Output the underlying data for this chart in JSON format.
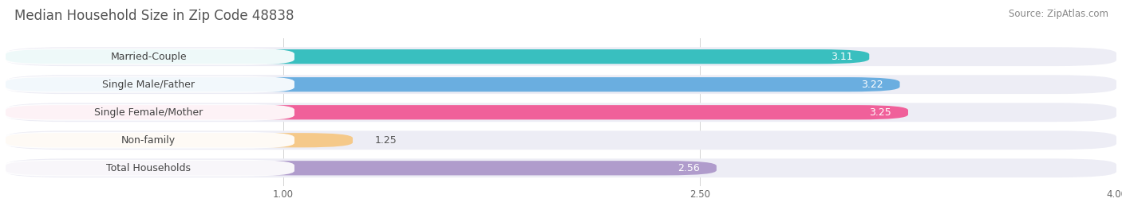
{
  "title": "Median Household Size in Zip Code 48838",
  "source": "Source: ZipAtlas.com",
  "categories": [
    "Married-Couple",
    "Single Male/Father",
    "Single Female/Mother",
    "Non-family",
    "Total Households"
  ],
  "values": [
    3.11,
    3.22,
    3.25,
    1.25,
    2.56
  ],
  "bar_colors": [
    "#39bfbf",
    "#6aaee0",
    "#f0609a",
    "#f5c98a",
    "#b09ccc"
  ],
  "track_color": "#ededf5",
  "xlim": [
    0,
    4.0
  ],
  "xticks": [
    1.0,
    2.5,
    4.0
  ],
  "title_fontsize": 12,
  "source_fontsize": 8.5,
  "label_fontsize": 9,
  "value_fontsize": 9,
  "background_color": "#ffffff"
}
